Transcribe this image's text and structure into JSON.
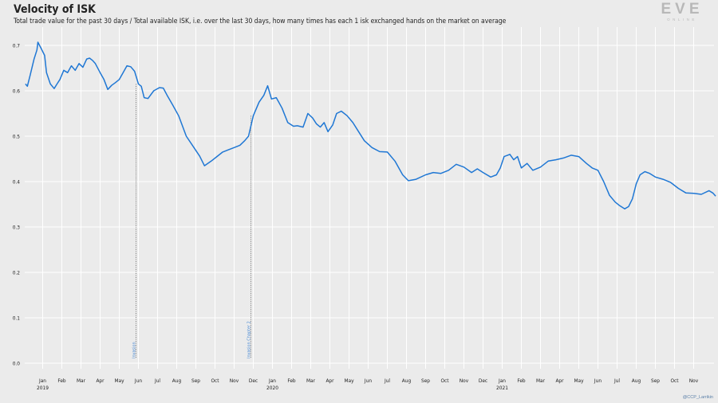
{
  "header": {
    "title": "Velocity of ISK",
    "subtitle": "Total trade value for the past 30 days / Total available ISK, i.e. over the last 30 days, how many times has each 1 isk exchanged hands on the market on average"
  },
  "logo": {
    "main": "EVE",
    "sub": "ONLINE"
  },
  "credit": "@CCP_Larrikin",
  "colors": {
    "line": "#1f77d4",
    "background": "#ebebeb",
    "grid": "#ffffff",
    "annotation": "#4a8ad4"
  },
  "chart_data": {
    "type": "line",
    "title": "Velocity of ISK",
    "xlabel": "",
    "ylabel": "",
    "ylim": [
      0,
      0.7
    ],
    "yticks": [
      0.0,
      0.1,
      0.2,
      0.3,
      0.4,
      0.5,
      0.6,
      0.7
    ],
    "grid": true,
    "month_ticks": [
      "Jan",
      "Feb",
      "Mar",
      "Apr",
      "May",
      "Jun",
      "Jul",
      "Aug",
      "Sep",
      "Oct",
      "Nov",
      "Dec",
      "Jan",
      "Feb",
      "Mar",
      "Apr",
      "May",
      "Jun",
      "Jul",
      "Aug",
      "Sep",
      "Oct",
      "Nov",
      "Dec",
      "Jan",
      "Feb",
      "Mar",
      "Apr",
      "May",
      "Jun",
      "Jul",
      "Aug",
      "Sep",
      "Oct",
      "Nov"
    ],
    "year_labels": [
      {
        "month_index": 0,
        "label": "2019"
      },
      {
        "month_index": 12,
        "label": "2020"
      },
      {
        "month_index": 24,
        "label": "2021"
      }
    ],
    "annotations": [
      {
        "month_index": 5.0,
        "label": "Invasion"
      },
      {
        "month_index": 11.0,
        "label": "Invasion Chapter 2"
      }
    ],
    "series": [
      {
        "month_index": [
          -0.9,
          -0.8,
          -0.65,
          -0.45,
          -0.3,
          -0.25,
          -0.1,
          0.1,
          0.2,
          0.4,
          0.6,
          0.75,
          0.9,
          1.1,
          1.3,
          1.5,
          1.7,
          1.9,
          2.1,
          2.3,
          2.45,
          2.6,
          2.75,
          3.0,
          3.2,
          3.4,
          3.6,
          3.8,
          4.0,
          4.2,
          4.4,
          4.6,
          4.8,
          5.0,
          5.15,
          5.3,
          5.5,
          5.8,
          6.1,
          6.3,
          6.5,
          6.8,
          7.1,
          7.5,
          7.9,
          8.2,
          8.45,
          8.8,
          9.1,
          9.4,
          9.7,
          10.0,
          10.3,
          10.55,
          10.75,
          11.0,
          11.3,
          11.55,
          11.75,
          11.95,
          12.2,
          12.5,
          12.8,
          13.1,
          13.3,
          13.6,
          13.85,
          14.1,
          14.3,
          14.5,
          14.7,
          14.9,
          15.15,
          15.35,
          15.6,
          15.9,
          16.2,
          16.5,
          16.8,
          17.2,
          17.6,
          18.0,
          18.4,
          18.8,
          19.1,
          19.5,
          20.0,
          20.4,
          20.8,
          21.2,
          21.6,
          22.0,
          22.4,
          22.7,
          23.0,
          23.4,
          23.7,
          23.9,
          24.1,
          24.4,
          24.6,
          24.8,
          25.0,
          25.3,
          25.6,
          26.0,
          26.4,
          26.8,
          27.2,
          27.6,
          28.0,
          28.4,
          28.7,
          29.0,
          29.3,
          29.6,
          29.9,
          30.1,
          30.4,
          30.6,
          30.8,
          31.0,
          31.2,
          31.45,
          31.7,
          32.0,
          32.4,
          32.8,
          33.2,
          33.6,
          34.0,
          34.4,
          34.8,
          35.0,
          35.15
        ],
        "values": [
          0.615,
          0.61,
          0.635,
          0.67,
          0.69,
          0.707,
          0.695,
          0.678,
          0.64,
          0.615,
          0.605,
          0.615,
          0.625,
          0.645,
          0.64,
          0.655,
          0.645,
          0.66,
          0.652,
          0.67,
          0.672,
          0.667,
          0.66,
          0.64,
          0.625,
          0.603,
          0.612,
          0.618,
          0.625,
          0.64,
          0.655,
          0.653,
          0.643,
          0.615,
          0.61,
          0.585,
          0.583,
          0.6,
          0.607,
          0.606,
          0.59,
          0.568,
          0.545,
          0.5,
          0.475,
          0.456,
          0.435,
          0.445,
          0.455,
          0.465,
          0.47,
          0.475,
          0.48,
          0.49,
          0.5,
          0.545,
          0.575,
          0.59,
          0.611,
          0.582,
          0.585,
          0.562,
          0.53,
          0.522,
          0.523,
          0.52,
          0.55,
          0.54,
          0.527,
          0.52,
          0.53,
          0.51,
          0.525,
          0.55,
          0.555,
          0.545,
          0.53,
          0.51,
          0.49,
          0.475,
          0.466,
          0.465,
          0.445,
          0.415,
          0.402,
          0.405,
          0.415,
          0.42,
          0.418,
          0.425,
          0.438,
          0.432,
          0.42,
          0.428,
          0.42,
          0.41,
          0.415,
          0.43,
          0.455,
          0.46,
          0.448,
          0.455,
          0.43,
          0.44,
          0.425,
          0.432,
          0.445,
          0.448,
          0.452,
          0.458,
          0.455,
          0.44,
          0.43,
          0.425,
          0.4,
          0.37,
          0.355,
          0.348,
          0.34,
          0.345,
          0.362,
          0.395,
          0.415,
          0.422,
          0.418,
          0.41,
          0.405,
          0.398,
          0.385,
          0.375,
          0.374,
          0.372,
          0.38,
          0.375,
          0.368
        ]
      }
    ]
  }
}
